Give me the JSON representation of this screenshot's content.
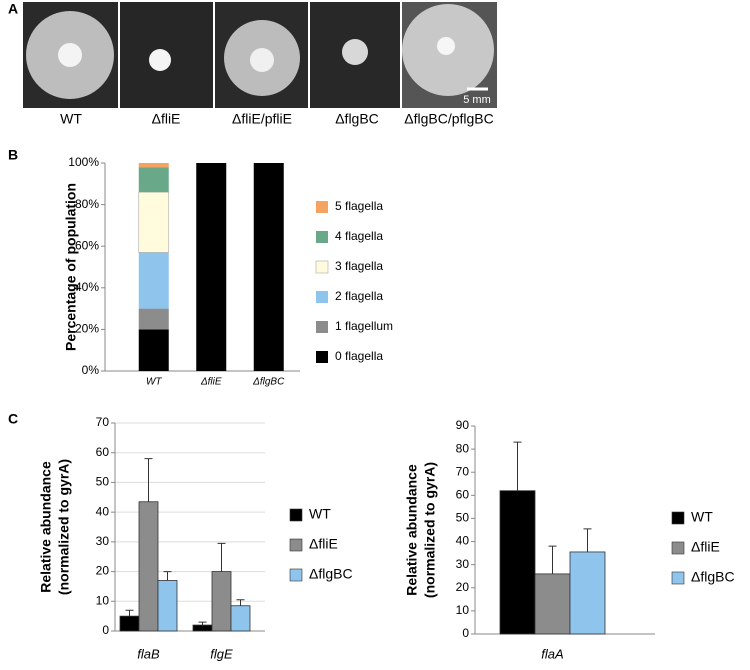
{
  "panel_labels": [
    "A",
    "B",
    "C"
  ],
  "image_labels": [
    "WT",
    "ΔfliE",
    "ΔfliE/pfliE",
    "ΔflgBC",
    "ΔflgBC/pflgBC"
  ],
  "scale_bar": "5 mm",
  "chart_data": [
    {
      "type": "bar",
      "stacked": true,
      "ylabel": "Percentage of population",
      "categories": [
        "WT",
        "ΔfliE",
        "ΔflgBC"
      ],
      "series": [
        {
          "name": "0 flagella",
          "color": "#000000",
          "values": [
            20,
            100,
            100
          ]
        },
        {
          "name": "1 flagellum",
          "color": "#8c8c8c",
          "values": [
            10,
            0,
            0
          ]
        },
        {
          "name": "2 flagella",
          "color": "#8fc4ec",
          "values": [
            27,
            0,
            0
          ]
        },
        {
          "name": "3 flagella",
          "color": "#fffbdc",
          "values": [
            29,
            0,
            0
          ]
        },
        {
          "name": "4 flagella",
          "color": "#6aa88a",
          "values": [
            12,
            0,
            0
          ]
        },
        {
          "name": "5 flagella",
          "color": "#f4a460",
          "values": [
            2,
            0,
            0
          ]
        }
      ],
      "ylim": [
        0,
        100
      ],
      "yticks": [
        {
          "value": 0,
          "label": "0%"
        },
        {
          "value": 20,
          "label": "20%"
        },
        {
          "value": 40,
          "label": "40%"
        },
        {
          "value": 60,
          "label": "60%"
        },
        {
          "value": 80,
          "label": "80%"
        },
        {
          "value": 100,
          "label": "100%"
        }
      ],
      "grid": false,
      "legend": "right"
    },
    {
      "type": "bar",
      "stacked": false,
      "ylabel": [
        "Relative abundance",
        "(normalized to gyrA)"
      ],
      "categories": [
        "flaB",
        "flgE"
      ],
      "series": [
        {
          "name": "WT",
          "color": "#000000",
          "values": [
            5,
            2
          ],
          "errors": [
            2,
            1
          ]
        },
        {
          "name": "ΔfliE",
          "color": "#8c8c8c",
          "values": [
            43.5,
            20
          ],
          "errors": [
            14.5,
            9.5
          ]
        },
        {
          "name": "ΔflgBC",
          "color": "#8fc4ec",
          "values": [
            17,
            8.5
          ],
          "errors": [
            3,
            2
          ]
        }
      ],
      "ylim": [
        0,
        70
      ],
      "yticks": [
        0,
        10,
        20,
        30,
        40,
        50,
        60,
        70
      ],
      "grid": true,
      "legend": "right"
    },
    {
      "type": "bar",
      "stacked": false,
      "ylabel": [
        "Relative abundance",
        "(normalized to gyrA)"
      ],
      "categories": [
        "flaA"
      ],
      "series": [
        {
          "name": "WT",
          "color": "#000000",
          "values": [
            62
          ],
          "errors": [
            21
          ]
        },
        {
          "name": "ΔfliE",
          "color": "#8c8c8c",
          "values": [
            26
          ],
          "errors": [
            12
          ]
        },
        {
          "name": "ΔflgBC",
          "color": "#8fc4ec",
          "values": [
            35.5
          ],
          "errors": [
            10
          ]
        }
      ],
      "ylim": [
        0,
        90
      ],
      "yticks": [
        0,
        10,
        20,
        30,
        40,
        50,
        60,
        70,
        80,
        90
      ],
      "grid": false,
      "legend": "right"
    }
  ]
}
